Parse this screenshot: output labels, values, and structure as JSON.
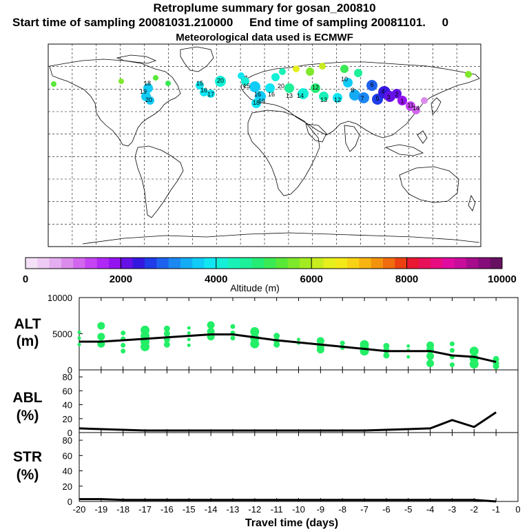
{
  "header": {
    "title": "Retroplume summary for gosan_200810",
    "start_label": "Start time of sampling 20081031.210000",
    "end_label": "End time of sampling 20081101.",
    "end_value": "0",
    "met_label": "Meteorological data used is ECMWF"
  },
  "colors": {
    "plume_green": "#22ee66",
    "line": "#000000"
  },
  "colorbar": {
    "ticks": [
      "0",
      "2000",
      "4000",
      "6000",
      "8000",
      "10000"
    ],
    "label": "Altitude (m)",
    "colors": [
      "#f4e1f7",
      "#eecbf4",
      "#e5aef0",
      "#db8ceb",
      "#d266ee",
      "#c544f3",
      "#b028f5",
      "#9414f0",
      "#6410e6",
      "#3418e0",
      "#1e3ce8",
      "#1d62ee",
      "#1c88f2",
      "#14acf4",
      "#10ccf6",
      "#10e6f2",
      "#14f0d8",
      "#18f2b8",
      "#1cf098",
      "#24ec74",
      "#3aea54",
      "#58e838",
      "#7ee82a",
      "#a4ea22",
      "#c8ec1e",
      "#e6ee1c",
      "#f4e818",
      "#f8d214",
      "#f8b410",
      "#f4920e",
      "#f06c0e",
      "#ec4010",
      "#e81830",
      "#e81058",
      "#e80c80",
      "#e00ca0",
      "#c80c9c",
      "#a60c8c",
      "#860c7a",
      "#681062"
    ]
  },
  "map_labels": {
    "plume_numbers": [
      "18",
      "19",
      "20",
      "15",
      "16",
      "17",
      "20",
      "15",
      "16",
      "19",
      "18",
      "16",
      "20",
      "13",
      "14",
      "12",
      "13",
      "12",
      "10",
      "8",
      "7",
      "6",
      "5",
      "4",
      "3",
      "2",
      "1",
      "11",
      "14"
    ]
  },
  "chart_data": [
    {
      "type": "line",
      "panel": "ALT",
      "ylabel": "ALT (m)",
      "ylabel_parts": [
        "ALT",
        "(m)"
      ],
      "ylim": [
        0,
        10000
      ],
      "y_ticks": [
        "10000",
        "5000",
        "0"
      ],
      "x": [
        -20,
        -19,
        -18,
        -17,
        -16,
        -15,
        -14,
        -13,
        -12,
        -11,
        -10,
        -9,
        -8,
        -7,
        -6,
        -5,
        -4,
        -3,
        -2,
        -1
      ],
      "series": [
        {
          "name": "mean altitude",
          "values": [
            3900,
            3900,
            4100,
            4300,
            4500,
            4700,
            4900,
            4900,
            4500,
            4100,
            3800,
            3500,
            3200,
            2900,
            2600,
            2600,
            2600,
            2000,
            1800,
            1100
          ]
        }
      ],
      "scatter": {
        "name": "cluster altitudes",
        "points": [
          [
            -20,
            5200
          ],
          [
            -20,
            4400
          ],
          [
            -20,
            3500
          ],
          [
            -19,
            6100
          ],
          [
            -19,
            4600
          ],
          [
            -19,
            3600
          ],
          [
            -18,
            5100
          ],
          [
            -18,
            4300
          ],
          [
            -18,
            3400
          ],
          [
            -18,
            2600
          ],
          [
            -17,
            5500
          ],
          [
            -17,
            4700
          ],
          [
            -17,
            3900
          ],
          [
            -17,
            3200
          ],
          [
            -16,
            5700
          ],
          [
            -16,
            5000
          ],
          [
            -16,
            4200
          ],
          [
            -16,
            3500
          ],
          [
            -15,
            5800
          ],
          [
            -15,
            5100
          ],
          [
            -15,
            4200
          ],
          [
            -15,
            3400
          ],
          [
            -14,
            6200
          ],
          [
            -14,
            5300
          ],
          [
            -14,
            4600
          ],
          [
            -13,
            6000
          ],
          [
            -13,
            5100
          ],
          [
            -13,
            4400
          ],
          [
            -12,
            5300
          ],
          [
            -12,
            4400
          ],
          [
            -12,
            3600
          ],
          [
            -11,
            4700
          ],
          [
            -11,
            4000
          ],
          [
            -11,
            3500
          ],
          [
            -10,
            4200
          ],
          [
            -10,
            3700
          ],
          [
            -9,
            4000
          ],
          [
            -9,
            3300
          ],
          [
            -9,
            2800
          ],
          [
            -8,
            3700
          ],
          [
            -8,
            3100
          ],
          [
            -7,
            3500
          ],
          [
            -7,
            3000
          ],
          [
            -7,
            2600
          ],
          [
            -6,
            3300
          ],
          [
            -6,
            2700
          ],
          [
            -6,
            2000
          ],
          [
            -5,
            3300
          ],
          [
            -5,
            2700
          ],
          [
            -5,
            1800
          ],
          [
            -4,
            3400
          ],
          [
            -4,
            2800
          ],
          [
            -4,
            1900
          ],
          [
            -4,
            900
          ],
          [
            -3,
            3600
          ],
          [
            -3,
            2700
          ],
          [
            -3,
            1800
          ],
          [
            -3,
            700
          ],
          [
            -2,
            2600
          ],
          [
            -2,
            1600
          ],
          [
            -2,
            800
          ],
          [
            -1,
            1500
          ],
          [
            -1,
            900
          ],
          [
            -1,
            500
          ]
        ]
      }
    },
    {
      "type": "line",
      "panel": "ABL",
      "ylabel": "ABL (%)",
      "ylabel_parts": [
        "ABL",
        "(%)"
      ],
      "ylim": [
        0,
        90
      ],
      "y_ticks": [
        "80",
        "60",
        "40",
        "20",
        "0"
      ],
      "x": [
        -20,
        -19,
        -18,
        -17,
        -16,
        -15,
        -14,
        -13,
        -12,
        -11,
        -10,
        -9,
        -8,
        -7,
        -6,
        -5,
        -4,
        -3,
        -2,
        -1
      ],
      "series": [
        {
          "name": "ABL fraction",
          "values": [
            6,
            5,
            4,
            3,
            3,
            3,
            3,
            3,
            3,
            3,
            3,
            3,
            3,
            3,
            4,
            5,
            6,
            18,
            8,
            29
          ]
        }
      ]
    },
    {
      "type": "line",
      "panel": "STR",
      "ylabel": "STR (%)",
      "ylabel_parts": [
        "STR",
        "(%)"
      ],
      "ylim": [
        0,
        90
      ],
      "y_ticks": [
        "80",
        "60",
        "40",
        "20",
        "0"
      ],
      "xlabel": "Travel time (days)",
      "x_ticks": [
        "-20",
        "-19",
        "-18",
        "-17",
        "-16",
        "-15",
        "-14",
        "-13",
        "-12",
        "-11",
        "-10",
        "-9",
        "-8",
        "-7",
        "-6",
        "-5",
        "-4",
        "-3",
        "-2",
        "-1",
        "0"
      ],
      "x": [
        -20,
        -19,
        -18,
        -17,
        -16,
        -15,
        -14,
        -13,
        -12,
        -11,
        -10,
        -9,
        -8,
        -7,
        -6,
        -5,
        -4,
        -3,
        -2,
        -1
      ],
      "series": [
        {
          "name": "stratosphere fraction",
          "values": [
            3,
            3,
            2,
            2,
            2,
            2,
            2,
            2,
            2,
            2,
            2,
            2,
            2,
            2,
            2,
            2,
            2,
            2,
            2,
            0
          ]
        }
      ]
    }
  ]
}
